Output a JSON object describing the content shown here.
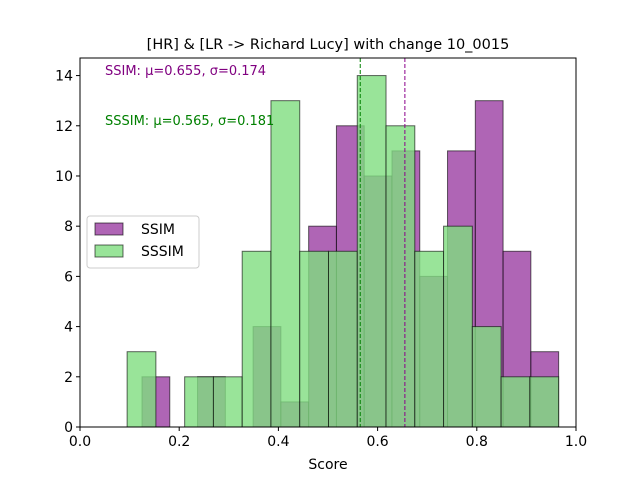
{
  "chart_data": {
    "type": "bar",
    "title": "[HR] & [LR -> Richard Lucy] with change 10_0015",
    "xlabel": "Score",
    "ylabel": "",
    "xlim": [
      0.0,
      1.0
    ],
    "ylim": [
      0,
      14.7
    ],
    "xticks": [
      "0.0",
      "0.2",
      "0.4",
      "0.6",
      "0.8",
      "1.0"
    ],
    "yticks": [
      "0",
      "2",
      "4",
      "6",
      "8",
      "10",
      "12",
      "14"
    ],
    "legend_position": "center-left",
    "series": [
      {
        "name": "SSIM",
        "color": "#9b3fa3",
        "bins": [
          {
            "x0": 0.125,
            "x1": 0.181,
            "count": 2
          },
          {
            "x0": 0.237,
            "x1": 0.293,
            "count": 2
          },
          {
            "x0": 0.349,
            "x1": 0.405,
            "count": 4
          },
          {
            "x0": 0.405,
            "x1": 0.461,
            "count": 1
          },
          {
            "x0": 0.461,
            "x1": 0.517,
            "count": 8
          },
          {
            "x0": 0.517,
            "x1": 0.573,
            "count": 12
          },
          {
            "x0": 0.573,
            "x1": 0.629,
            "count": 10
          },
          {
            "x0": 0.629,
            "x1": 0.685,
            "count": 11
          },
          {
            "x0": 0.685,
            "x1": 0.741,
            "count": 6
          },
          {
            "x0": 0.741,
            "x1": 0.797,
            "count": 11
          },
          {
            "x0": 0.797,
            "x1": 0.853,
            "count": 13
          },
          {
            "x0": 0.853,
            "x1": 0.909,
            "count": 7
          },
          {
            "x0": 0.909,
            "x1": 0.965,
            "count": 3
          }
        ]
      },
      {
        "name": "SSSIM",
        "color": "#7fdd7f",
        "bins": [
          {
            "x0": 0.095,
            "x1": 0.153,
            "count": 3
          },
          {
            "x0": 0.153,
            "x1": 0.211,
            "count": 0
          },
          {
            "x0": 0.211,
            "x1": 0.269,
            "count": 2
          },
          {
            "x0": 0.269,
            "x1": 0.327,
            "count": 2
          },
          {
            "x0": 0.327,
            "x1": 0.385,
            "count": 7
          },
          {
            "x0": 0.385,
            "x1": 0.443,
            "count": 13
          },
          {
            "x0": 0.443,
            "x1": 0.501,
            "count": 7
          },
          {
            "x0": 0.501,
            "x1": 0.559,
            "count": 7
          },
          {
            "x0": 0.559,
            "x1": 0.617,
            "count": 14
          },
          {
            "x0": 0.617,
            "x1": 0.675,
            "count": 12
          },
          {
            "x0": 0.675,
            "x1": 0.733,
            "count": 7
          },
          {
            "x0": 0.733,
            "x1": 0.791,
            "count": 8
          },
          {
            "x0": 0.791,
            "x1": 0.849,
            "count": 4
          },
          {
            "x0": 0.849,
            "x1": 0.907,
            "count": 2
          },
          {
            "x0": 0.907,
            "x1": 0.965,
            "count": 2
          }
        ]
      }
    ],
    "mean_lines": [
      {
        "series": "SSIM",
        "value": 0.655,
        "color": "#8b008b"
      },
      {
        "series": "SSSIM",
        "value": 0.565,
        "color": "#008000"
      }
    ],
    "annotations": [
      {
        "text": "SSIM: μ=0.655, σ=0.174",
        "color": "#800080"
      },
      {
        "text": "SSSIM: μ=0.565, σ=0.181",
        "color": "#008000"
      }
    ]
  }
}
